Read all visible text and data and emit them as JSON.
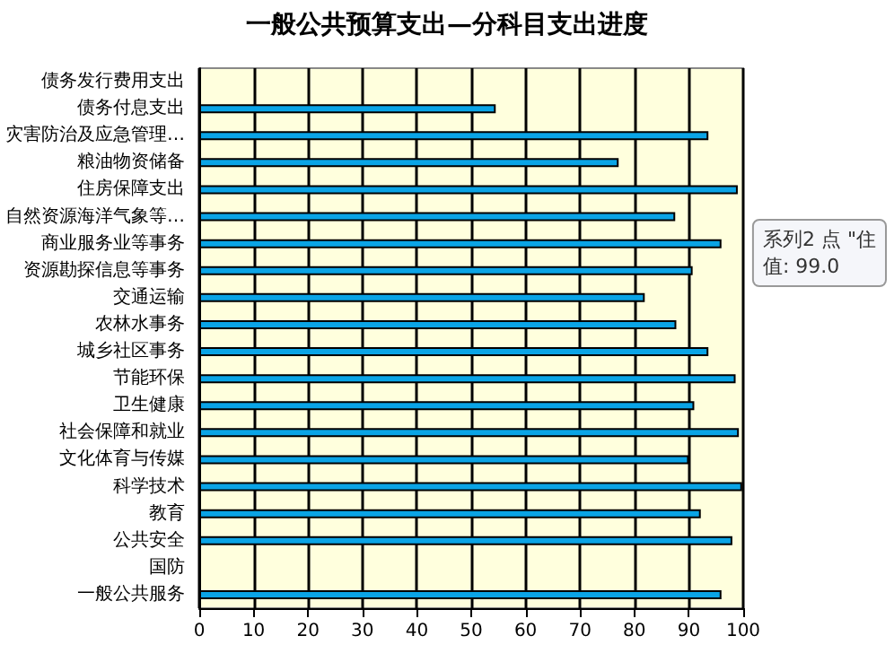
{
  "chart_data": {
    "type": "bar",
    "orientation": "horizontal",
    "title": "一般公共预算支出—分科目支出进度",
    "categories": [
      "债务发行费用支出",
      "债务付息支出",
      "灾害防治及应急管理…",
      "粮油物资储备",
      "住房保障支出",
      "自然资源海洋气象等…",
      "商业服务业等事务",
      "资源勘探信息等事务",
      "交通运输",
      "农林水事务",
      "城乡社区事务",
      "节能环保",
      "卫生健康",
      "社会保障和就业",
      "文化体育与传媒",
      "科学技术",
      "教育",
      "公共安全",
      "国防",
      "一般公共服务"
    ],
    "values": [
      null,
      54.5,
      93.6,
      77.1,
      99,
      87.5,
      96,
      90.7,
      81.9,
      87.7,
      93.6,
      98.6,
      91,
      99.2,
      90,
      99.8,
      92.2,
      98,
      null,
      96
    ],
    "color": "#0aa4e6",
    "xlim": [
      0,
      100
    ],
    "xticks": [
      0,
      10,
      20,
      30,
      40,
      50,
      60,
      70,
      80,
      90,
      100
    ],
    "grid": "x",
    "annotations": [
      "系列2 点 \"住",
      "值: 99.0"
    ]
  }
}
